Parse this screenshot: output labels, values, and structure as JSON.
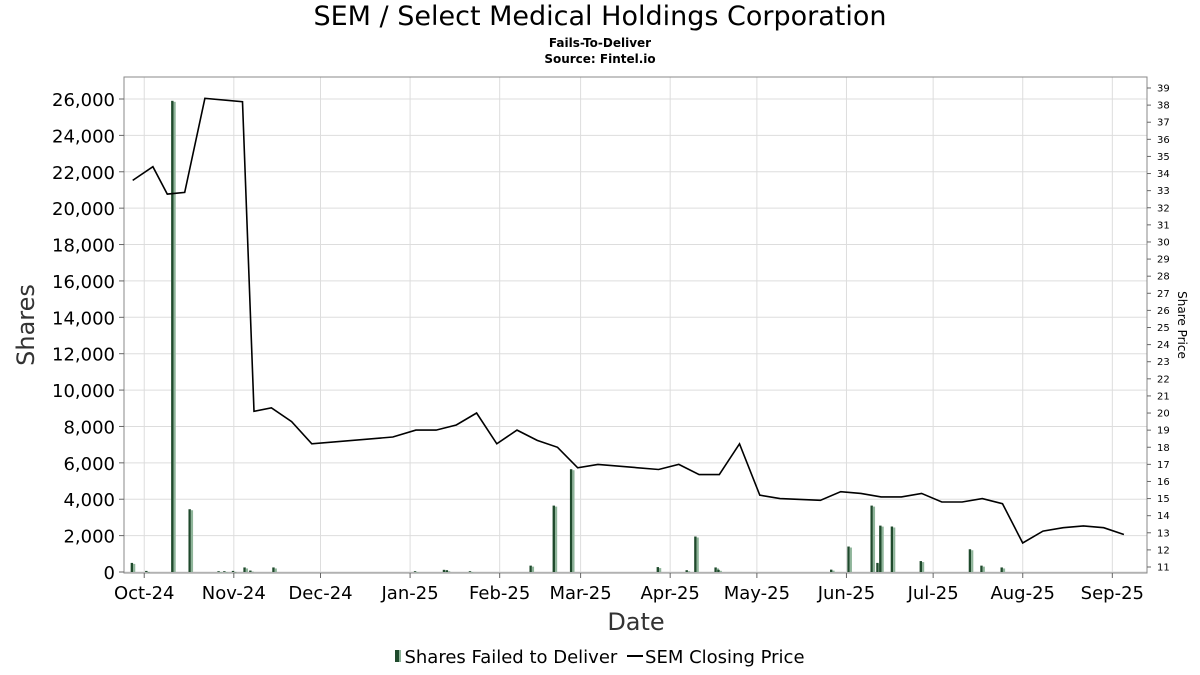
{
  "header": {
    "title": "SEM / Select Medical Holdings Corporation",
    "subtitle": "Fails-To-Deliver",
    "source": "Source: Fintel.io"
  },
  "legend": {
    "bars": "Shares Failed to Deliver",
    "line": "SEM Closing Price"
  },
  "colors": {
    "bar_dark": "#1f4a2c",
    "bar_light": "#8fb59a",
    "line": "#000000",
    "grid": "#dddddd"
  },
  "chart_data": {
    "type": "bar+line",
    "xlabel": "Date",
    "ylabel": "Shares",
    "y2label": "Share Price",
    "x_domain": [
      "2024-09-24",
      "2025-09-13"
    ],
    "ylim": [
      0,
      26000
    ],
    "y_ticks": [
      0,
      2000,
      4000,
      6000,
      8000,
      10000,
      12000,
      14000,
      16000,
      18000,
      20000,
      22000,
      24000,
      26000
    ],
    "y_tick_labels": [
      "0",
      "2,000",
      "4,000",
      "6,000",
      "8,000",
      "10,000",
      "12,000",
      "14,000",
      "16,000",
      "18,000",
      "20,000",
      "22,000",
      "24,000",
      "26,000"
    ],
    "y2lim": [
      11,
      39
    ],
    "y2_ticks": [
      11,
      12,
      13,
      14,
      15,
      16,
      17,
      18,
      19,
      20,
      21,
      22,
      23,
      24,
      25,
      26,
      27,
      28,
      29,
      30,
      31,
      32,
      33,
      34,
      35,
      36,
      37,
      38,
      39
    ],
    "x_ticks": [
      {
        "date": "2024-10-01",
        "label": "Oct-24"
      },
      {
        "date": "2024-11-01",
        "label": "Nov-24"
      },
      {
        "date": "2024-12-01",
        "label": "Dec-24"
      },
      {
        "date": "2025-01-01",
        "label": "Jan-25"
      },
      {
        "date": "2025-02-01",
        "label": "Feb-25"
      },
      {
        "date": "2025-03-01",
        "label": "Mar-25"
      },
      {
        "date": "2025-04-01",
        "label": "Apr-25"
      },
      {
        "date": "2025-05-01",
        "label": "May-25"
      },
      {
        "date": "2025-06-01",
        "label": "Jun-25"
      },
      {
        "date": "2025-07-01",
        "label": "Jul-25"
      },
      {
        "date": "2025-08-01",
        "label": "Aug-25"
      },
      {
        "date": "2025-09-01",
        "label": "Sep-25"
      }
    ],
    "fails_to_deliver": [
      {
        "date": "2024-09-27",
        "value": 500
      },
      {
        "date": "2024-10-02",
        "value": 60
      },
      {
        "date": "2024-10-11",
        "value": 25900
      },
      {
        "date": "2024-10-17",
        "value": 3450
      },
      {
        "date": "2024-10-27",
        "value": 30
      },
      {
        "date": "2024-10-29",
        "value": 40
      },
      {
        "date": "2024-11-01",
        "value": 60
      },
      {
        "date": "2024-11-05",
        "value": 250
      },
      {
        "date": "2024-11-07",
        "value": 80
      },
      {
        "date": "2024-11-15",
        "value": 250
      },
      {
        "date": "2025-01-03",
        "value": 40
      },
      {
        "date": "2025-01-13",
        "value": 120
      },
      {
        "date": "2025-01-14",
        "value": 100
      },
      {
        "date": "2025-01-22",
        "value": 40
      },
      {
        "date": "2025-02-12",
        "value": 350
      },
      {
        "date": "2025-02-20",
        "value": 3650
      },
      {
        "date": "2025-02-26",
        "value": 5650
      },
      {
        "date": "2025-03-28",
        "value": 270
      },
      {
        "date": "2025-04-07",
        "value": 100
      },
      {
        "date": "2025-04-10",
        "value": 1950
      },
      {
        "date": "2025-04-17",
        "value": 250
      },
      {
        "date": "2025-04-18",
        "value": 120
      },
      {
        "date": "2025-05-27",
        "value": 130
      },
      {
        "date": "2025-06-02",
        "value": 1400
      },
      {
        "date": "2025-06-10",
        "value": 3650
      },
      {
        "date": "2025-06-12",
        "value": 500
      },
      {
        "date": "2025-06-13",
        "value": 2550
      },
      {
        "date": "2025-06-17",
        "value": 2500
      },
      {
        "date": "2025-06-27",
        "value": 600
      },
      {
        "date": "2025-07-14",
        "value": 1250
      },
      {
        "date": "2025-07-18",
        "value": 350
      },
      {
        "date": "2025-07-25",
        "value": 250
      }
    ],
    "closing_price": [
      {
        "date": "2024-09-27",
        "price": 33.6
      },
      {
        "date": "2024-10-04",
        "price": 34.4
      },
      {
        "date": "2024-10-09",
        "price": 32.8
      },
      {
        "date": "2024-10-15",
        "price": 32.9
      },
      {
        "date": "2024-10-22",
        "price": 38.4
      },
      {
        "date": "2024-11-04",
        "price": 38.2
      },
      {
        "date": "2024-11-08",
        "price": 20.1
      },
      {
        "date": "2024-11-14",
        "price": 20.3
      },
      {
        "date": "2024-11-21",
        "price": 19.5
      },
      {
        "date": "2024-11-28",
        "price": 18.2
      },
      {
        "date": "2024-12-26",
        "price": 18.6
      },
      {
        "date": "2025-01-03",
        "price": 19.0
      },
      {
        "date": "2025-01-10",
        "price": 19.0
      },
      {
        "date": "2025-01-17",
        "price": 19.3
      },
      {
        "date": "2025-01-24",
        "price": 20.0
      },
      {
        "date": "2025-01-31",
        "price": 18.2
      },
      {
        "date": "2025-02-07",
        "price": 19.0
      },
      {
        "date": "2025-02-14",
        "price": 18.4
      },
      {
        "date": "2025-02-21",
        "price": 18.0
      },
      {
        "date": "2025-02-28",
        "price": 16.8
      },
      {
        "date": "2025-03-07",
        "price": 17.0
      },
      {
        "date": "2025-03-28",
        "price": 16.7
      },
      {
        "date": "2025-04-04",
        "price": 17.0
      },
      {
        "date": "2025-04-11",
        "price": 16.4
      },
      {
        "date": "2025-04-18",
        "price": 16.4
      },
      {
        "date": "2025-04-25",
        "price": 18.2
      },
      {
        "date": "2025-05-02",
        "price": 15.2
      },
      {
        "date": "2025-05-09",
        "price": 15.0
      },
      {
        "date": "2025-05-23",
        "price": 14.9
      },
      {
        "date": "2025-05-30",
        "price": 15.4
      },
      {
        "date": "2025-06-06",
        "price": 15.3
      },
      {
        "date": "2025-06-13",
        "price": 15.1
      },
      {
        "date": "2025-06-20",
        "price": 15.1
      },
      {
        "date": "2025-06-27",
        "price": 15.3
      },
      {
        "date": "2025-07-04",
        "price": 14.8
      },
      {
        "date": "2025-07-11",
        "price": 14.8
      },
      {
        "date": "2025-07-18",
        "price": 15.0
      },
      {
        "date": "2025-07-25",
        "price": 14.7
      },
      {
        "date": "2025-08-01",
        "price": 12.4
      },
      {
        "date": "2025-08-08",
        "price": 13.1
      },
      {
        "date": "2025-08-15",
        "price": 13.3
      },
      {
        "date": "2025-08-22",
        "price": 13.4
      },
      {
        "date": "2025-08-29",
        "price": 13.3
      },
      {
        "date": "2025-09-05",
        "price": 12.9
      }
    ]
  }
}
